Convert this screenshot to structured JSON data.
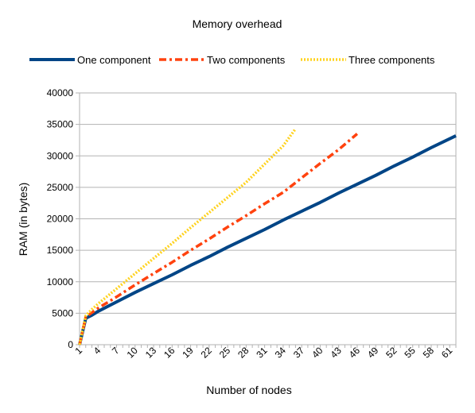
{
  "chart_data": {
    "type": "line",
    "title": "Memory overhead",
    "xlabel": "Number of nodes",
    "ylabel": "RAM (in bytes)",
    "ylim": [
      0,
      40000
    ],
    "y_ticks": [
      "0",
      "5000",
      "10000",
      "15000",
      "20000",
      "25000",
      "30000",
      "35000",
      "40000"
    ],
    "x_ticks": [
      "1",
      "4",
      "7",
      "10",
      "13",
      "16",
      "19",
      "22",
      "25",
      "28",
      "31",
      "34",
      "37",
      "40",
      "43",
      "46",
      "49",
      "52",
      "55",
      "58",
      "61"
    ],
    "xlim": [
      1,
      62
    ],
    "grid": "horizontal",
    "legend_position": "top",
    "series": [
      {
        "name": "One component",
        "color": "#004586",
        "style": "solid",
        "x": [
          1,
          2,
          3,
          4,
          7,
          10,
          13,
          16,
          19,
          22,
          25,
          28,
          31,
          34,
          37,
          40,
          43,
          46,
          49,
          52,
          55,
          58,
          62
        ],
        "values": [
          0,
          4200,
          4700,
          5300,
          6800,
          8300,
          9700,
          11100,
          12600,
          14000,
          15500,
          16900,
          18300,
          19800,
          21200,
          22600,
          24100,
          25500,
          26900,
          28400,
          29800,
          31300,
          33200
        ]
      },
      {
        "name": "Two components",
        "color": "#ff420e",
        "style": "dash-dot",
        "x": [
          1,
          2,
          3,
          4,
          7,
          10,
          13,
          16,
          19,
          22,
          25,
          28,
          31,
          34,
          37,
          40,
          43,
          46
        ],
        "values": [
          0,
          4400,
          5100,
          5800,
          7600,
          9500,
          11300,
          13100,
          15000,
          16800,
          18700,
          20500,
          22400,
          24200,
          26500,
          28800,
          31000,
          33500
        ]
      },
      {
        "name": "Three components",
        "color": "#ffd320",
        "style": "dotted",
        "x": [
          1,
          2,
          3,
          4,
          7,
          10,
          13,
          16,
          19,
          22,
          25,
          28,
          31,
          34,
          36
        ],
        "values": [
          0,
          4600,
          5600,
          6500,
          8900,
          11300,
          13700,
          16100,
          18600,
          21000,
          23400,
          25800,
          28700,
          31600,
          34300
        ]
      }
    ]
  }
}
